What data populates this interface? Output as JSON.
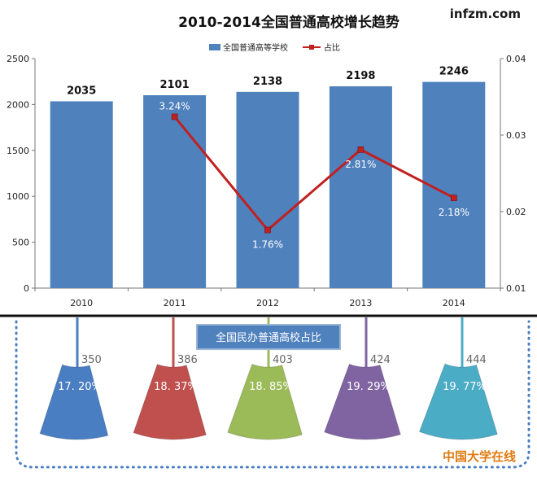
{
  "header": {
    "title": "2010-2014全国普通高校增长趋势",
    "watermark": "infzm.com"
  },
  "chart_data": [
    {
      "type": "bar",
      "title": "2010-2014全国普通高校增长趋势",
      "categories": [
        "2010",
        "2011",
        "2012",
        "2013",
        "2014"
      ],
      "ylim": [
        0,
        2500
      ],
      "yticks": [
        "0",
        "500",
        "1000",
        "1500",
        "2000",
        "2500"
      ],
      "y2lim": [
        0.01,
        0.04
      ],
      "y2ticks": [
        "0.01",
        "0.02",
        "0.03",
        "0.04"
      ],
      "legend_position": "top-center",
      "grid": false,
      "series": [
        {
          "name": "全国普通高等学校",
          "type": "bar",
          "axis": "left",
          "color": "#4f81bd",
          "values": [
            2035,
            2101,
            2138,
            2198,
            2246
          ],
          "labels": [
            "2035",
            "2101",
            "2138",
            "2198",
            "2246"
          ]
        },
        {
          "name": "占比",
          "type": "line",
          "axis": "right",
          "color": "#c0201f",
          "values": [
            null,
            0.0324,
            0.0176,
            0.0281,
            0.0218
          ],
          "labels": [
            "",
            "3.24%",
            "1.76%",
            "2.81%",
            "2.18%"
          ]
        }
      ]
    },
    {
      "type": "pie",
      "title": "全国民办普通高校占比",
      "categories": [
        "2010",
        "2011",
        "2012",
        "2013",
        "2014"
      ],
      "values": [
        350,
        386,
        403,
        424,
        444
      ],
      "count_labels": [
        "350",
        "386",
        "403",
        "424",
        "444"
      ],
      "percent_values": [
        17.2,
        18.37,
        18.85,
        19.29,
        19.77
      ],
      "percent_labels": [
        "17. 20%",
        "18. 37%",
        "18. 85%",
        "19. 29%",
        "19. 77%"
      ],
      "colors": [
        "#4a7ec3",
        "#c0504d",
        "#9bbb59",
        "#8064a2",
        "#4bacc6"
      ]
    }
  ],
  "footer": {
    "source": "中国大学在线"
  }
}
